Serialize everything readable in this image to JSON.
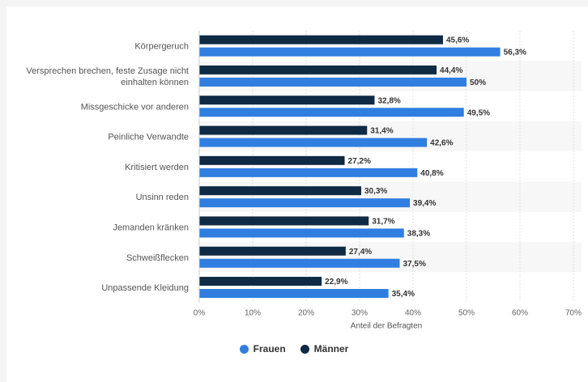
{
  "chart_data": {
    "type": "bar",
    "orientation": "horizontal",
    "categories": [
      [
        "Körpergeruch"
      ],
      [
        "Versprechen brechen, feste Zusage nicht",
        "einhalten können"
      ],
      [
        "Missgeschicke vor anderen"
      ],
      [
        "Peinliche Verwandte"
      ],
      [
        "Kritisiert werden"
      ],
      [
        "Unsinn reden"
      ],
      [
        "Jemanden kränken"
      ],
      [
        "Schweißflecken"
      ],
      [
        "Unpassende Kleidung"
      ]
    ],
    "series": [
      {
        "name": "Männer",
        "color": "#0f2a44",
        "values": [
          45.6,
          44.4,
          32.8,
          31.4,
          27.2,
          30.3,
          31.7,
          27.4,
          22.9
        ],
        "labels": [
          "45,6%",
          "44,4%",
          "32,8%",
          "31,4%",
          "27,2%",
          "30,3%",
          "31,7%",
          "27,4%",
          "22,9%"
        ]
      },
      {
        "name": "Frauen",
        "color": "#2f7ee0",
        "values": [
          56.3,
          50,
          49.5,
          42.6,
          40.8,
          39.4,
          38.3,
          37.5,
          35.4
        ],
        "labels": [
          "56,3%",
          "50%",
          "49,5%",
          "42,6%",
          "40,8%",
          "39,4%",
          "38,3%",
          "37,5%",
          "35,4%"
        ]
      }
    ],
    "xlim": [
      0,
      70
    ],
    "xticks": [
      0,
      10,
      20,
      30,
      40,
      50,
      60,
      70
    ],
    "xtick_labels": [
      "0%",
      "10%",
      "20%",
      "30%",
      "40%",
      "50%",
      "60%",
      "70%"
    ],
    "xlabel": "Anteil der Befragten",
    "ylabel": "",
    "grid": true,
    "legend_position": "bottom-center",
    "legend": [
      {
        "name": "Frauen",
        "color": "#2f7ee0"
      },
      {
        "name": "Männer",
        "color": "#0f2a44"
      }
    ]
  }
}
